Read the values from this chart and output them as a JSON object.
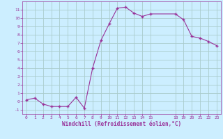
{
  "x": [
    0,
    1,
    2,
    3,
    4,
    5,
    6,
    7,
    8,
    9,
    10,
    11,
    12,
    13,
    14,
    15,
    18,
    19,
    20,
    21,
    22,
    23
  ],
  "y": [
    0.2,
    0.4,
    -0.3,
    -0.6,
    -0.6,
    -0.6,
    0.5,
    -0.8,
    4.0,
    7.3,
    9.3,
    11.2,
    11.3,
    10.6,
    10.2,
    10.5,
    10.5,
    9.8,
    7.8,
    7.6,
    7.2,
    6.7
  ],
  "line_color": "#993399",
  "marker": "+",
  "bg_color": "#cceeff",
  "grid_color": "#aacccc",
  "xlabel": "Windchill (Refroidissement éolien,°C)",
  "xlabel_color": "#993399",
  "tick_color": "#993399",
  "xlim": [
    -0.5,
    23.5
  ],
  "ylim": [
    -1.5,
    12.0
  ],
  "xticks": [
    0,
    1,
    2,
    3,
    4,
    5,
    6,
    7,
    8,
    9,
    10,
    11,
    12,
    13,
    14,
    15,
    18,
    19,
    20,
    21,
    22,
    23
  ],
  "yticks": [
    -1,
    0,
    1,
    2,
    3,
    4,
    5,
    6,
    7,
    8,
    9,
    10,
    11
  ]
}
